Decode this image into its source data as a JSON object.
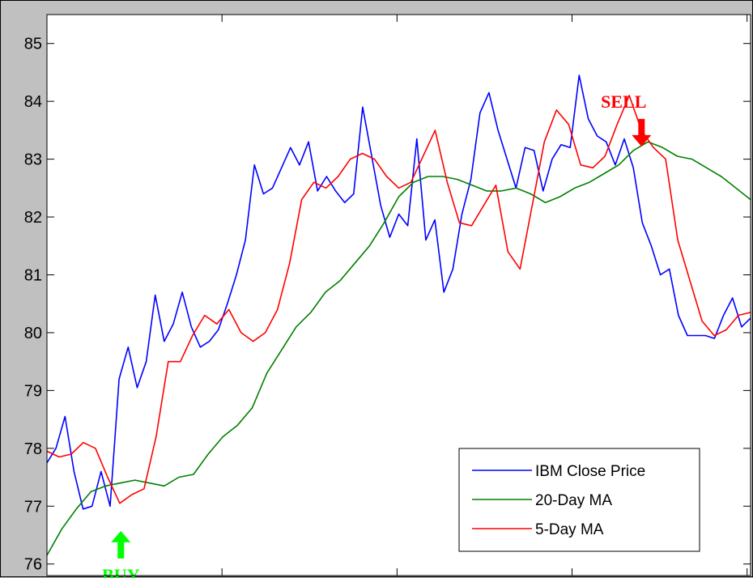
{
  "chart_data": {
    "type": "line",
    "title": "",
    "xlabel": "",
    "ylabel": "",
    "ylim": [
      75.8,
      85.5
    ],
    "xlim": [
      0,
      100
    ],
    "yticks": [
      "76",
      "77",
      "78",
      "79",
      "80",
      "81",
      "82",
      "83",
      "84",
      "85"
    ],
    "xtick_count": 4,
    "grid": false,
    "legend_position": "bottom-right",
    "series": [
      {
        "name": "IBM Close Price",
        "color": "#0000ff",
        "values": [
          77.75,
          78.0,
          78.55,
          77.6,
          76.95,
          77.0,
          77.6,
          77.0,
          79.2,
          79.75,
          79.05,
          79.5,
          80.65,
          79.85,
          80.15,
          80.7,
          80.1,
          79.75,
          79.85,
          80.05,
          80.5,
          81.0,
          81.6,
          82.9,
          82.4,
          82.5,
          82.85,
          83.2,
          82.9,
          83.3,
          82.45,
          82.7,
          82.45,
          82.25,
          82.4,
          83.9,
          83.05,
          82.2,
          81.65,
          82.05,
          81.85,
          83.35,
          81.6,
          81.95,
          80.7,
          81.1,
          82.05,
          82.65,
          83.8,
          84.15,
          83.5,
          83.0,
          82.5,
          83.2,
          83.15,
          82.45,
          83.0,
          83.25,
          83.2,
          84.45,
          83.7,
          83.4,
          83.3,
          82.9,
          83.35,
          82.85,
          81.9,
          81.5,
          81.0,
          81.1,
          80.3,
          79.95,
          79.95,
          79.95,
          79.9,
          80.3,
          80.6,
          80.1,
          80.25
        ]
      },
      {
        "name": "20-Day MA",
        "color": "#008000",
        "values": [
          76.15,
          76.6,
          76.95,
          77.25,
          77.35,
          77.4,
          77.45,
          77.4,
          77.35,
          77.5,
          77.55,
          77.9,
          78.2,
          78.4,
          78.7,
          79.3,
          79.7,
          80.1,
          80.35,
          80.7,
          80.9,
          81.2,
          81.5,
          81.9,
          82.35,
          82.6,
          82.7,
          82.7,
          82.65,
          82.55,
          82.45,
          82.45,
          82.5,
          82.4,
          82.25,
          82.35,
          82.5,
          82.6,
          82.75,
          82.9,
          83.15,
          83.3,
          83.2,
          83.05,
          83.0,
          82.85,
          82.7,
          82.5,
          82.3
        ]
      },
      {
        "name": "5-Day MA",
        "color": "#ff0000",
        "values": [
          77.95,
          77.85,
          77.9,
          78.1,
          78.0,
          77.5,
          77.05,
          77.2,
          77.3,
          78.2,
          79.5,
          79.5,
          79.95,
          80.3,
          80.15,
          80.4,
          80.0,
          79.85,
          80.0,
          80.4,
          81.2,
          82.3,
          82.6,
          82.5,
          82.7,
          83.0,
          83.1,
          83.0,
          82.7,
          82.5,
          82.6,
          83.05,
          83.5,
          82.6,
          81.9,
          81.85,
          82.2,
          82.55,
          81.4,
          81.1,
          82.2,
          83.3,
          83.85,
          83.6,
          82.9,
          82.85,
          83.05,
          83.6,
          84.1,
          83.5,
          83.2,
          83.0,
          81.6,
          80.9,
          80.2,
          79.95,
          80.05,
          80.3,
          80.35
        ]
      }
    ],
    "annotations": [
      {
        "text": "BUY",
        "color": "#00ff00",
        "x": 10.5,
        "y": 76.6,
        "arrow": "up"
      },
      {
        "text": "SELL",
        "color": "#ff0000",
        "x": 84.5,
        "y": 83.5,
        "arrow": "down"
      }
    ]
  }
}
